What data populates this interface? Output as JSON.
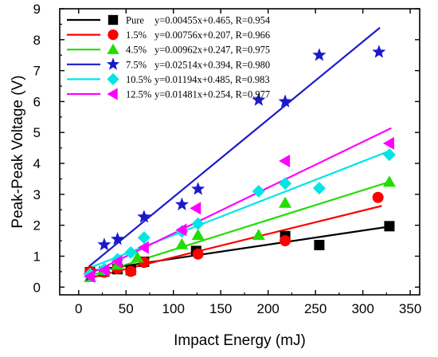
{
  "chart_data": {
    "type": "scatter",
    "xlabel": "Impact Energy (mJ)",
    "ylabel": "Peak-Peak Voltage (V)",
    "xlim": [
      -20,
      360
    ],
    "ylim": [
      -0.25,
      9
    ],
    "xticks": [
      0,
      50,
      100,
      150,
      200,
      250,
      300,
      350
    ],
    "yticks": [
      0,
      1,
      2,
      3,
      4,
      5,
      6,
      7,
      8,
      9
    ],
    "grid": false,
    "legend_position": "top-left",
    "series": [
      {
        "name": "Pure",
        "fit_text": "y=0.00455x+0.465, R=0.954",
        "color": "#000000",
        "marker": "square",
        "slope": 0.00455,
        "intercept": 0.465,
        "fit_range": [
          11,
          330
        ],
        "points": [
          [
            12,
            0.48
          ],
          [
            27,
            0.5
          ],
          [
            41,
            0.58
          ],
          [
            55,
            0.55
          ],
          [
            69,
            0.82
          ],
          [
            124,
            1.17
          ],
          [
            218,
            1.65
          ],
          [
            254,
            1.36
          ],
          [
            328,
            1.97
          ]
        ]
      },
      {
        "name": "1.5%",
        "fit_text": "y=0.00756x+0.207, R=0.966",
        "color": "#ff0000",
        "marker": "circle",
        "slope": 0.00756,
        "intercept": 0.207,
        "fit_range": [
          11,
          320
        ],
        "points": [
          [
            12,
            0.5
          ],
          [
            27,
            0.48
          ],
          [
            41,
            0.6
          ],
          [
            55,
            0.51
          ],
          [
            69,
            0.8
          ],
          [
            126,
            1.07
          ],
          [
            218,
            1.5
          ],
          [
            316,
            2.9
          ]
        ]
      },
      {
        "name": "4.5%",
        "fit_text": "y=0.00962x+0.247, R=0.975",
        "color": "#22dd00",
        "marker": "triangle-up",
        "slope": 0.00962,
        "intercept": 0.247,
        "fit_range": [
          11,
          330
        ],
        "points": [
          [
            12,
            0.32
          ],
          [
            27,
            0.55
          ],
          [
            41,
            0.72
          ],
          [
            62,
            0.95
          ],
          [
            109,
            1.38
          ],
          [
            126,
            1.68
          ],
          [
            190,
            1.68
          ],
          [
            218,
            2.72
          ],
          [
            328,
            3.4
          ]
        ]
      },
      {
        "name": "7.5%",
        "fit_text": "y=0.02514x+0.394, R=0.980",
        "color": "#1a1acc",
        "marker": "star",
        "slope": 0.02514,
        "intercept": 0.394,
        "fit_range": [
          11,
          318
        ],
        "points": [
          [
            12,
            0.38
          ],
          [
            27,
            1.37
          ],
          [
            41,
            1.55
          ],
          [
            69,
            2.27
          ],
          [
            109,
            2.67
          ],
          [
            126,
            3.17
          ],
          [
            190,
            6.05
          ],
          [
            218,
            6.0
          ],
          [
            254,
            7.5
          ],
          [
            317,
            7.6
          ]
        ]
      },
      {
        "name": "10.5%",
        "fit_text": "y=0.01194x+0.485, R=0.983",
        "color": "#00e6e6",
        "marker": "diamond",
        "slope": 0.01194,
        "intercept": 0.485,
        "fit_range": [
          11,
          330
        ],
        "points": [
          [
            12,
            0.42
          ],
          [
            27,
            0.58
          ],
          [
            41,
            0.9
          ],
          [
            55,
            1.12
          ],
          [
            69,
            1.6
          ],
          [
            109,
            1.8
          ],
          [
            126,
            2.05
          ],
          [
            190,
            3.1
          ],
          [
            218,
            3.35
          ],
          [
            254,
            3.2
          ],
          [
            328,
            4.28
          ]
        ]
      },
      {
        "name": "12.5%",
        "fit_text": "y=0.01481x+0.254, R=0.977",
        "color": "#ff00ff",
        "marker": "triangle-left",
        "slope": 0.01481,
        "intercept": 0.254,
        "fit_range": [
          11,
          330
        ],
        "points": [
          [
            12,
            0.35
          ],
          [
            27,
            0.55
          ],
          [
            41,
            0.82
          ],
          [
            69,
            1.28
          ],
          [
            109,
            1.85
          ],
          [
            124,
            2.55
          ],
          [
            218,
            4.08
          ],
          [
            328,
            4.65
          ]
        ]
      }
    ]
  }
}
